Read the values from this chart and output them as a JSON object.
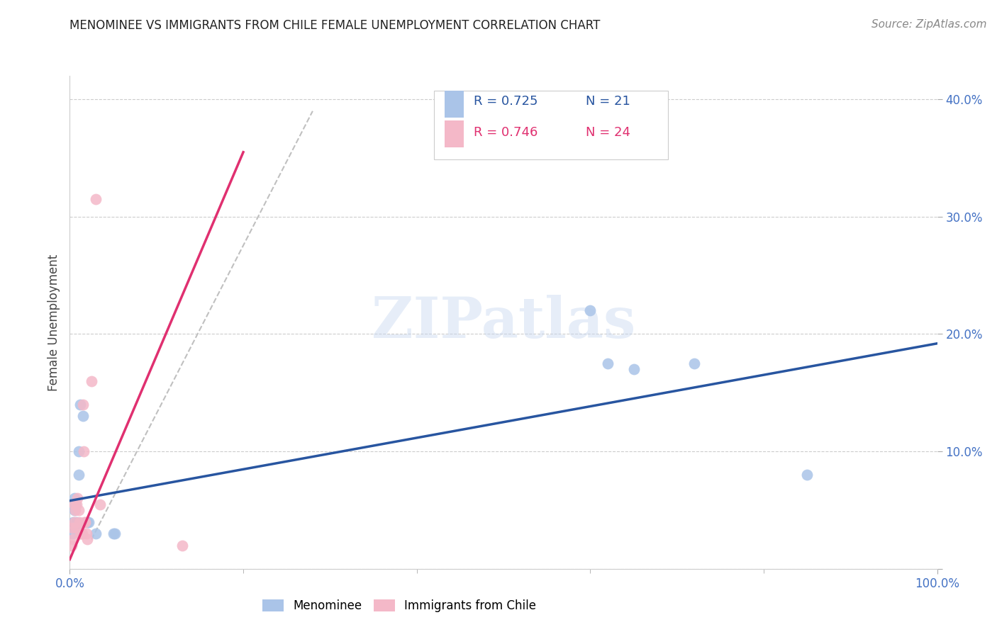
{
  "title": "MENOMINEE VS IMMIGRANTS FROM CHILE FEMALE UNEMPLOYMENT CORRELATION CHART",
  "source": "Source: ZipAtlas.com",
  "ylabel": "Female Unemployment",
  "xlim": [
    0.0,
    1.0
  ],
  "ylim": [
    0.0,
    0.42
  ],
  "yticks": [
    0.0,
    0.1,
    0.2,
    0.3,
    0.4
  ],
  "xticks": [
    0.0,
    1.0
  ],
  "xtick_labels": [
    "0.0%",
    "100.0%"
  ],
  "ytick_labels": [
    "",
    "10.0%",
    "20.0%",
    "30.0%",
    "40.0%"
  ],
  "grid_color": "#cccccc",
  "background_color": "#ffffff",
  "menominee_color": "#aac4e8",
  "chile_color": "#f4b8c8",
  "menominee_line_color": "#2855a0",
  "chile_line_color": "#e03070",
  "dashed_line_color": "#c0c0c0",
  "tick_color": "#4472c4",
  "legend_R1": "R = 0.725",
  "legend_N1": "N = 21",
  "legend_R2": "R = 0.746",
  "legend_N2": "N = 24",
  "watermark": "ZIPatlas",
  "menominee_x": [
    0.003,
    0.004,
    0.005,
    0.005,
    0.006,
    0.007,
    0.008,
    0.01,
    0.01,
    0.012,
    0.015,
    0.02,
    0.022,
    0.03,
    0.05,
    0.052,
    0.6,
    0.62,
    0.65,
    0.72,
    0.85
  ],
  "menominee_y": [
    0.03,
    0.04,
    0.05,
    0.06,
    0.055,
    0.035,
    0.04,
    0.08,
    0.1,
    0.14,
    0.13,
    0.04,
    0.04,
    0.03,
    0.03,
    0.03,
    0.22,
    0.175,
    0.17,
    0.175,
    0.08
  ],
  "chile_x": [
    0.002,
    0.003,
    0.004,
    0.005,
    0.005,
    0.006,
    0.007,
    0.008,
    0.009,
    0.01,
    0.011,
    0.012,
    0.013,
    0.014,
    0.015,
    0.016,
    0.017,
    0.018,
    0.019,
    0.02,
    0.025,
    0.03,
    0.035,
    0.13
  ],
  "chile_y": [
    0.02,
    0.035,
    0.025,
    0.055,
    0.04,
    0.05,
    0.035,
    0.055,
    0.06,
    0.05,
    0.04,
    0.03,
    0.03,
    0.03,
    0.14,
    0.1,
    0.04,
    0.04,
    0.03,
    0.025,
    0.16,
    0.315,
    0.055,
    0.02
  ],
  "menominee_trend_x": [
    0.0,
    1.0
  ],
  "menominee_trend_y": [
    0.058,
    0.192
  ],
  "chile_trend_x": [
    0.0,
    0.2
  ],
  "chile_trend_y": [
    0.008,
    0.355
  ],
  "dashed_trend_x": [
    0.025,
    0.28
  ],
  "dashed_trend_y": [
    0.025,
    0.39
  ]
}
